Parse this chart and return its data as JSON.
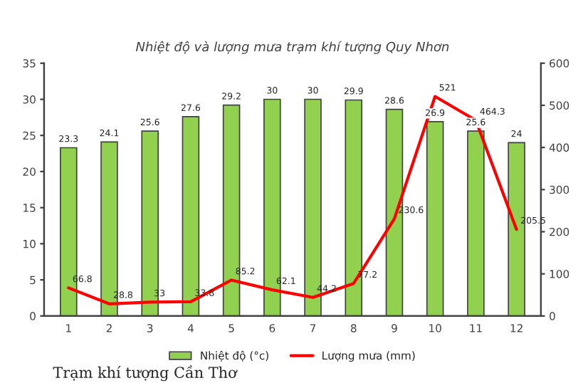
{
  "chart_data": {
    "type": "bar",
    "title": "Nhiệt độ và lượng mưa trạm khí tượng Quy Nhơn",
    "categories": [
      "1",
      "2",
      "3",
      "4",
      "5",
      "6",
      "7",
      "8",
      "9",
      "10",
      "11",
      "12"
    ],
    "series": [
      {
        "name": "Nhiệt độ (°c)",
        "color": "#92d050",
        "values": [
          23.3,
          24.1,
          25.6,
          27.6,
          29.2,
          30,
          30,
          29.9,
          28.6,
          26.9,
          25.6,
          24
        ]
      },
      {
        "name": "Lượng mưa (mm)",
        "type": "line",
        "axis": "y2",
        "color": "#ff0000",
        "values": [
          66.8,
          28.8,
          33,
          33.8,
          85.2,
          62.1,
          44.2,
          77.2,
          230.6,
          521,
          464.3,
          205.5
        ]
      }
    ],
    "ylim": [
      0,
      35
    ],
    "yticks": [
      0,
      5,
      10,
      15,
      20,
      25,
      30,
      35
    ],
    "y2lim": [
      0,
      600
    ],
    "y2ticks": [
      0,
      100,
      200,
      300,
      400,
      500,
      600
    ],
    "data_labels": true,
    "grid": false,
    "legend": "bottom",
    "marker": "none",
    "line_style": "solid",
    "annotations": [
      "Trạm khí tượng Cần Thơ"
    ]
  }
}
